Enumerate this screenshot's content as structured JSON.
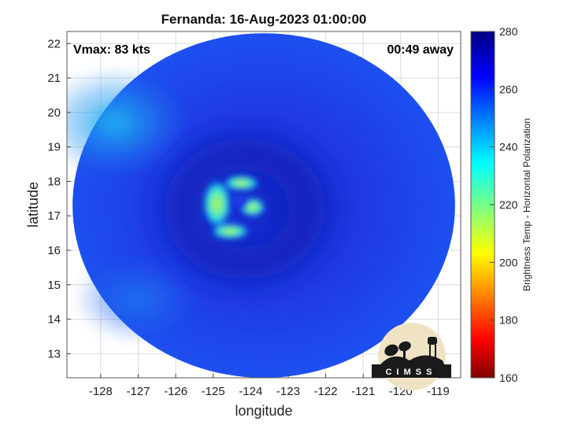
{
  "chart_data": {
    "type": "heatmap",
    "title": "Fernanda: 16-Aug-2023 01:00:00",
    "xlabel": "longitude",
    "ylabel": "latitude",
    "xlim": [
      -128.9,
      -118.4
    ],
    "ylim": [
      12.3,
      22.35
    ],
    "x_ticks": [
      -128,
      -127,
      -126,
      -125,
      -124,
      -123,
      -122,
      -121,
      -120,
      -119
    ],
    "x_tick_labels": [
      "-128",
      "-127",
      "-126",
      "-125",
      "-124",
      "-123",
      "-122",
      "-121",
      "-120",
      "-119"
    ],
    "y_ticks": [
      13,
      14,
      15,
      16,
      17,
      18,
      19,
      20,
      21,
      22
    ],
    "y_tick_labels": [
      "13",
      "14",
      "15",
      "16",
      "17",
      "18",
      "19",
      "20",
      "21",
      "22"
    ],
    "grid": true,
    "colorbar": {
      "label": "Brightness Temp - Horizontal Polarization",
      "range": [
        160,
        280
      ],
      "ticks": [
        160,
        180,
        200,
        220,
        240,
        260,
        280
      ],
      "tick_labels": [
        "160",
        "180",
        "200",
        "220",
        "240",
        "260",
        "280"
      ],
      "colormap": "jet"
    },
    "swath": {
      "center_lon": -123.65,
      "center_lat": 17.3,
      "radius_deg_lon": 5.1,
      "radius_deg_lat": 5.0
    },
    "eye_center": {
      "lon": -124.15,
      "lat": 17.2
    },
    "features": [
      {
        "name": "inner core cold region",
        "lon": -124.8,
        "lat": 17.3,
        "value_min": 210,
        "value_max": 245
      },
      {
        "name": "environment west-northwest",
        "lon": -127.8,
        "lat": 19.6,
        "value_min": 240,
        "value_max": 250
      },
      {
        "name": "background",
        "value_min": 262,
        "value_max": 272
      }
    ],
    "annotations": {
      "vmax": "Vmax: 83 kts",
      "time_away": "00:49 away"
    },
    "logo": {
      "text": "CIMSS"
    }
  }
}
